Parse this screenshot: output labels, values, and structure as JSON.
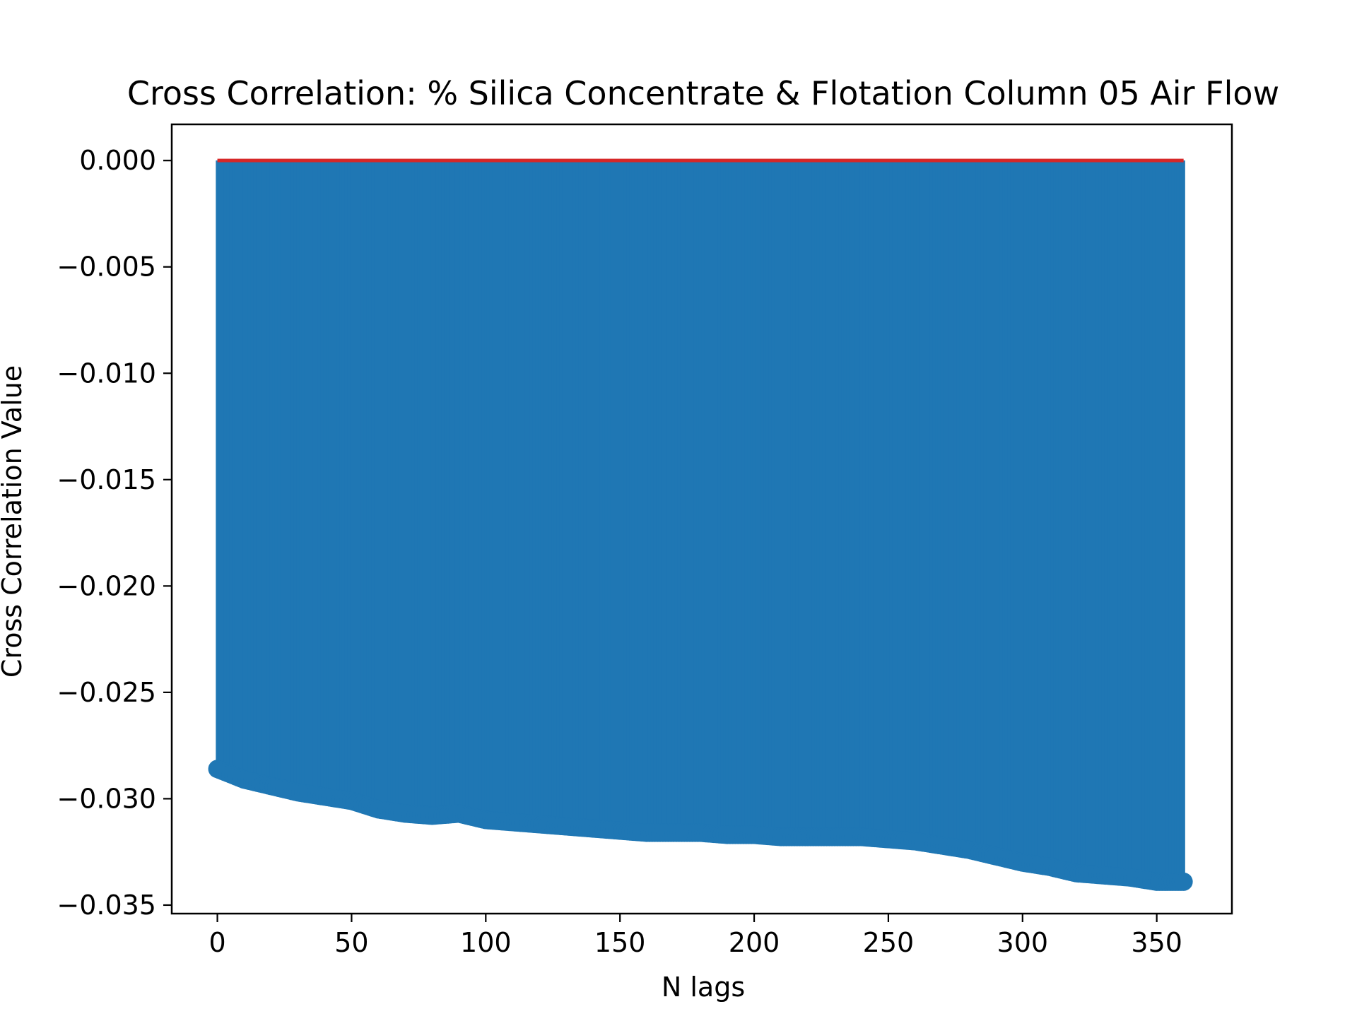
{
  "chart_data": {
    "type": "stem",
    "title": "Cross Correlation: % Silica Concentrate & Flotation Column 05 Air Flow",
    "xlabel": "N lags",
    "ylabel": "Cross Correlation Value",
    "xlim": [
      -17,
      378
    ],
    "ylim": [
      -0.0354,
      0.0017
    ],
    "xticks": [
      0,
      50,
      100,
      150,
      200,
      250,
      300,
      350
    ],
    "xtick_labels": [
      "0",
      "50",
      "100",
      "150",
      "200",
      "250",
      "300",
      "350"
    ],
    "yticks": [
      0.0,
      -0.005,
      -0.01,
      -0.015,
      -0.02,
      -0.025,
      -0.03,
      -0.035
    ],
    "ytick_labels": [
      "0.000",
      "−0.005",
      "−0.010",
      "−0.015",
      "−0.020",
      "−0.025",
      "−0.030",
      "−0.035"
    ],
    "grid": false,
    "baseline": 0,
    "lag_range": [
      0,
      360
    ],
    "series": [
      {
        "x": [
          0,
          10,
          20,
          30,
          40,
          50,
          60,
          70,
          80,
          90,
          100,
          110,
          120,
          130,
          140,
          150,
          160,
          170,
          180,
          190,
          200,
          210,
          220,
          230,
          240,
          250,
          260,
          270,
          280,
          290,
          300,
          310,
          320,
          330,
          340,
          350,
          360
        ],
        "values": [
          -0.0286,
          -0.0291,
          -0.0294,
          -0.0297,
          -0.0299,
          -0.0301,
          -0.0305,
          -0.0307,
          -0.0308,
          -0.0307,
          -0.031,
          -0.0311,
          -0.0312,
          -0.0313,
          -0.0314,
          -0.0315,
          -0.0316,
          -0.0316,
          -0.0316,
          -0.0317,
          -0.0317,
          -0.0318,
          -0.0318,
          -0.0318,
          -0.0318,
          -0.0319,
          -0.032,
          -0.0322,
          -0.0324,
          -0.0327,
          -0.033,
          -0.0332,
          -0.0335,
          -0.0336,
          -0.0337,
          -0.0339,
          -0.0339
        ]
      }
    ],
    "colors": {
      "stem": "#1f77b4",
      "baseline": "#d62728",
      "frame": "#000000"
    }
  }
}
